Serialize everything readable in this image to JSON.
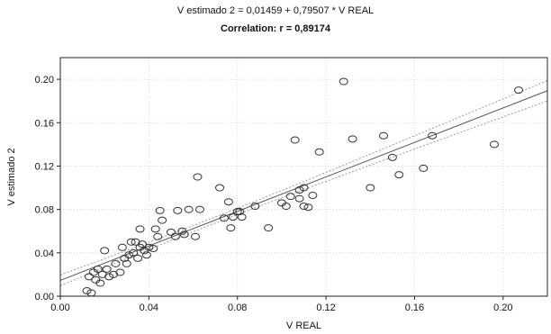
{
  "chart_data": {
    "type": "scatter",
    "title": "V estimado 2 = 0,01459 + 0,79507 * V REAL",
    "subtitle": "Correlation: r = 0,89174",
    "xlabel": "V REAL",
    "ylabel": "V estimado 2",
    "xlim": [
      0,
      0.22
    ],
    "ylim": [
      0,
      0.22
    ],
    "x_ticks": [
      "0.00",
      "0.04",
      "0.08",
      "0.12",
      "0.16",
      "0.20"
    ],
    "y_ticks": [
      "0.00",
      "0.04",
      "0.08",
      "0.12",
      "0.16",
      "0.20"
    ],
    "grid": true,
    "regression": {
      "intercept": 0.01459,
      "slope": 0.79507
    },
    "confidence_band": true,
    "points": [
      [
        0.012,
        0.005
      ],
      [
        0.013,
        0.018
      ],
      [
        0.014,
        0.003
      ],
      [
        0.015,
        0.022
      ],
      [
        0.016,
        0.015
      ],
      [
        0.017,
        0.025
      ],
      [
        0.018,
        0.012
      ],
      [
        0.019,
        0.02
      ],
      [
        0.02,
        0.042
      ],
      [
        0.021,
        0.025
      ],
      [
        0.022,
        0.018
      ],
      [
        0.024,
        0.02
      ],
      [
        0.025,
        0.03
      ],
      [
        0.027,
        0.022
      ],
      [
        0.028,
        0.045
      ],
      [
        0.029,
        0.035
      ],
      [
        0.03,
        0.03
      ],
      [
        0.031,
        0.038
      ],
      [
        0.032,
        0.05
      ],
      [
        0.033,
        0.04
      ],
      [
        0.034,
        0.05
      ],
      [
        0.035,
        0.035
      ],
      [
        0.036,
        0.062
      ],
      [
        0.036,
        0.045
      ],
      [
        0.037,
        0.048
      ],
      [
        0.038,
        0.042
      ],
      [
        0.039,
        0.038
      ],
      [
        0.04,
        0.045
      ],
      [
        0.042,
        0.044
      ],
      [
        0.043,
        0.062
      ],
      [
        0.044,
        0.055
      ],
      [
        0.045,
        0.079
      ],
      [
        0.046,
        0.07
      ],
      [
        0.05,
        0.059
      ],
      [
        0.052,
        0.055
      ],
      [
        0.053,
        0.079
      ],
      [
        0.055,
        0.06
      ],
      [
        0.056,
        0.057
      ],
      [
        0.058,
        0.08
      ],
      [
        0.061,
        0.055
      ],
      [
        0.062,
        0.11
      ],
      [
        0.063,
        0.08
      ],
      [
        0.072,
        0.1
      ],
      [
        0.074,
        0.072
      ],
      [
        0.076,
        0.087
      ],
      [
        0.077,
        0.063
      ],
      [
        0.078,
        0.073
      ],
      [
        0.08,
        0.078
      ],
      [
        0.081,
        0.078
      ],
      [
        0.082,
        0.073
      ],
      [
        0.088,
        0.083
      ],
      [
        0.094,
        0.063
      ],
      [
        0.1,
        0.086
      ],
      [
        0.102,
        0.083
      ],
      [
        0.104,
        0.092
      ],
      [
        0.106,
        0.144
      ],
      [
        0.108,
        0.098
      ],
      [
        0.108,
        0.09
      ],
      [
        0.11,
        0.1
      ],
      [
        0.11,
        0.083
      ],
      [
        0.112,
        0.082
      ],
      [
        0.114,
        0.093
      ],
      [
        0.117,
        0.133
      ],
      [
        0.128,
        0.198
      ],
      [
        0.132,
        0.145
      ],
      [
        0.14,
        0.1
      ],
      [
        0.146,
        0.148
      ],
      [
        0.15,
        0.128
      ],
      [
        0.153,
        0.112
      ],
      [
        0.164,
        0.118
      ],
      [
        0.168,
        0.148
      ],
      [
        0.196,
        0.14
      ],
      [
        0.207,
        0.19
      ]
    ]
  }
}
